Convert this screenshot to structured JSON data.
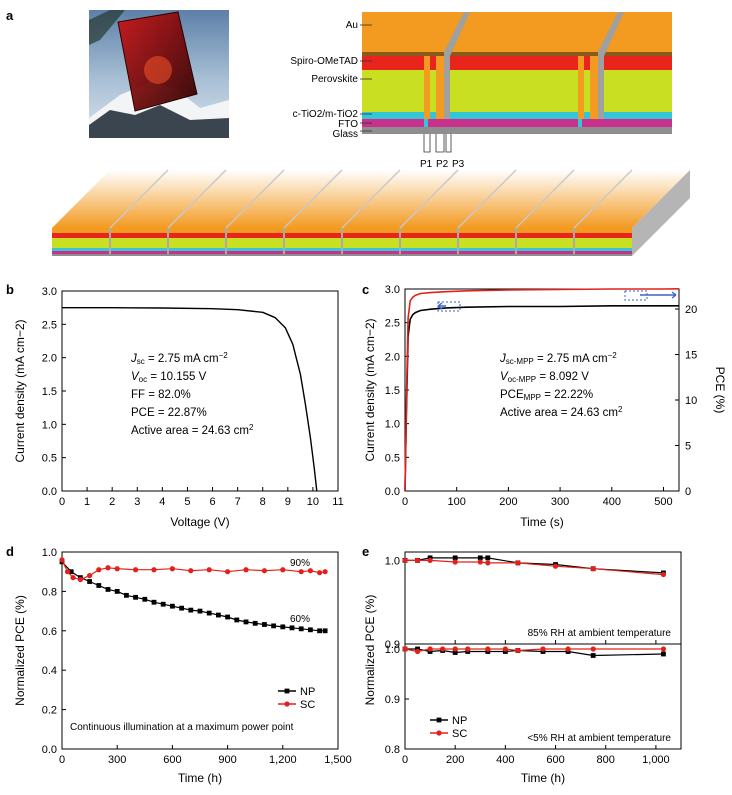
{
  "figure": {
    "panel_a": {
      "letter": "a",
      "layers": [
        "Au",
        "Spiro-OMeTAD",
        "Perovskite",
        "c-TiO2/m-TiO2",
        "FTO",
        "Glass"
      ],
      "scribes": [
        "P1",
        "P2",
        "P3"
      ],
      "colors": {
        "au": "#f39a21",
        "spiro": "#e8241c",
        "perovskite": "#c8df22",
        "tio2": "#33c6d6",
        "fto": "#c8308e",
        "glass": "#8e8e8e"
      }
    },
    "panel_b": {
      "letter": "b"
    },
    "panel_c": {
      "letter": "c"
    },
    "panel_d": {
      "letter": "d"
    },
    "panel_e": {
      "letter": "e"
    }
  },
  "chart_data": [
    {
      "panel": "b",
      "type": "line",
      "xlabel": "Voltage (V)",
      "ylabel": "Current density (mA cm−2)",
      "xlim": [
        0,
        11
      ],
      "ylim": [
        0,
        3.0
      ],
      "xticks": [
        0,
        1,
        2,
        3,
        4,
        5,
        6,
        7,
        8,
        9,
        10,
        11
      ],
      "yticks": [
        0,
        0.5,
        1.0,
        1.5,
        2.0,
        2.5,
        3.0
      ],
      "series": [
        {
          "color": "#000000",
          "x": [
            0,
            2,
            4,
            6,
            7,
            8,
            8.5,
            8.9,
            9.2,
            9.5,
            9.7,
            9.9,
            10.05,
            10.155
          ],
          "y": [
            2.75,
            2.75,
            2.745,
            2.735,
            2.72,
            2.68,
            2.6,
            2.45,
            2.2,
            1.75,
            1.3,
            0.8,
            0.35,
            0
          ]
        }
      ],
      "annotations": [
        "Jsc = 2.75 mA cm−2",
        "Voc = 10.155 V",
        "FF = 82.0%",
        "PCE = 22.87%",
        "Active area = 24.63 cm2"
      ]
    },
    {
      "panel": "c",
      "type": "line",
      "xlabel": "Time (s)",
      "ylabel": "Current density (mA cm−2)",
      "ylabel_right": "PCE (%)",
      "xlim": [
        0,
        530
      ],
      "ylim": [
        0,
        3.0
      ],
      "ylim_right": [
        0,
        22.2
      ],
      "xticks": [
        0,
        100,
        200,
        300,
        400,
        500
      ],
      "yticks": [
        0,
        0.5,
        1.0,
        1.5,
        2.0,
        2.5,
        3.0
      ],
      "yticks_right": [
        0,
        5,
        10,
        15,
        20
      ],
      "series": [
        {
          "axis": "left",
          "color": "#000000",
          "x": [
            0,
            3,
            6,
            10,
            15,
            20,
            30,
            50,
            80,
            120,
            200,
            300,
            400,
            500,
            530
          ],
          "y": [
            0,
            1.3,
            2.3,
            2.55,
            2.62,
            2.65,
            2.68,
            2.7,
            2.72,
            2.73,
            2.74,
            2.74,
            2.75,
            2.75,
            2.75
          ]
        },
        {
          "axis": "right",
          "color": "#e3201b",
          "x": [
            0,
            3,
            6,
            10,
            15,
            20,
            30,
            50,
            80,
            120,
            200,
            300,
            400,
            500,
            530
          ],
          "y": [
            0,
            11,
            19,
            20.9,
            21.3,
            21.5,
            21.7,
            21.8,
            21.9,
            22.0,
            22.1,
            22.15,
            22.2,
            22.2,
            22.22
          ]
        }
      ],
      "annotations": [
        "Jsc-MPP = 2.75 mA cm−2",
        "Voc-MPP = 8.092 V",
        "PCEMPP = 22.22%",
        "Active area = 24.63 cm2"
      ]
    },
    {
      "panel": "d",
      "type": "line",
      "xlabel": "Time (h)",
      "ylabel": "Normalized PCE (%)",
      "xlim": [
        0,
        1500
      ],
      "ylim": [
        0,
        1.0
      ],
      "xticks": [
        0,
        300,
        600,
        900,
        1200,
        1500
      ],
      "xticklabels": [
        "0",
        "300",
        "600",
        "900",
        "1,200",
        "1,500"
      ],
      "yticks": [
        0,
        0.2,
        0.4,
        0.6,
        0.8,
        1.0
      ],
      "series": [
        {
          "name": "NP",
          "color": "#000000",
          "x": [
            0,
            50,
            100,
            150,
            200,
            250,
            300,
            350,
            400,
            450,
            500,
            550,
            600,
            650,
            700,
            750,
            800,
            850,
            900,
            950,
            1000,
            1050,
            1100,
            1150,
            1200,
            1250,
            1300,
            1350,
            1400,
            1430
          ],
          "y": [
            0.95,
            0.9,
            0.87,
            0.85,
            0.83,
            0.81,
            0.8,
            0.78,
            0.77,
            0.76,
            0.745,
            0.735,
            0.725,
            0.715,
            0.705,
            0.7,
            0.69,
            0.68,
            0.67,
            0.655,
            0.645,
            0.638,
            0.632,
            0.625,
            0.62,
            0.615,
            0.61,
            0.605,
            0.6,
            0.6
          ]
        },
        {
          "name": "SC",
          "color": "#e3201b",
          "x": [
            0,
            30,
            60,
            100,
            150,
            200,
            250,
            300,
            400,
            500,
            600,
            700,
            800,
            900,
            1000,
            1100,
            1200,
            1300,
            1350,
            1400,
            1430
          ],
          "y": [
            0.96,
            0.9,
            0.87,
            0.86,
            0.88,
            0.91,
            0.92,
            0.915,
            0.91,
            0.91,
            0.915,
            0.905,
            0.91,
            0.9,
            0.91,
            0.905,
            0.91,
            0.9,
            0.905,
            0.895,
            0.9
          ]
        }
      ],
      "labels": [
        "90%",
        "60%"
      ],
      "legend": [
        "NP",
        "SC"
      ],
      "legend_position": "bottom-right",
      "annotation": "Continuous illumination at a maximum power point"
    },
    {
      "panel": "e",
      "type": "line",
      "xlabel": "Time (h)",
      "ylabel": "Normalized PCE (%)",
      "xlim": [
        0,
        1100
      ],
      "xticks": [
        0,
        200,
        400,
        600,
        800,
        1000
      ],
      "xticklabels": [
        "0",
        "200",
        "400",
        "600",
        "800",
        "1,000"
      ],
      "subplots": [
        {
          "ylim": [
            0.9,
            1.01
          ],
          "yticks": [
            0.9,
            1.0
          ],
          "condition": "85% RH at ambient temperature",
          "series": [
            {
              "name": "NP",
              "color": "#000000",
              "x": [
                0,
                50,
                100,
                200,
                300,
                330,
                450,
                600,
                750,
                1030
              ],
              "y": [
                1.0,
                1.0,
                1.003,
                1.003,
                1.003,
                1.003,
                0.997,
                0.995,
                0.99,
                0.985
              ]
            },
            {
              "name": "SC",
              "color": "#e3201b",
              "x": [
                0,
                50,
                100,
                200,
                300,
                330,
                450,
                600,
                750,
                1030
              ],
              "y": [
                1.0,
                1.0,
                1.0,
                0.998,
                0.998,
                0.997,
                0.997,
                0.993,
                0.99,
                0.983
              ]
            }
          ]
        },
        {
          "ylim": [
            0.8,
            1.01
          ],
          "yticks": [
            0.8,
            0.9,
            1.0
          ],
          "condition": "<5% RH at ambient temperature",
          "series": [
            {
              "name": "NP",
              "color": "#000000",
              "x": [
                0,
                50,
                100,
                150,
                200,
                250,
                330,
                400,
                450,
                550,
                650,
                750,
                1030
              ],
              "y": [
                1.0,
                1.0,
                0.995,
                0.997,
                0.993,
                0.995,
                0.995,
                0.995,
                0.997,
                0.995,
                0.995,
                0.987,
                0.99
              ]
            },
            {
              "name": "SC",
              "color": "#e3201b",
              "x": [
                0,
                50,
                100,
                150,
                200,
                250,
                330,
                400,
                450,
                550,
                650,
                750,
                1030
              ],
              "y": [
                1.0,
                0.995,
                1.0,
                1.0,
                1.0,
                1.0,
                1.0,
                1.0,
                0.997,
                1.0,
                1.0,
                1.0,
                1.0
              ]
            }
          ]
        }
      ],
      "legend": [
        "NP",
        "SC"
      ],
      "legend_position": "bottom-left"
    }
  ]
}
